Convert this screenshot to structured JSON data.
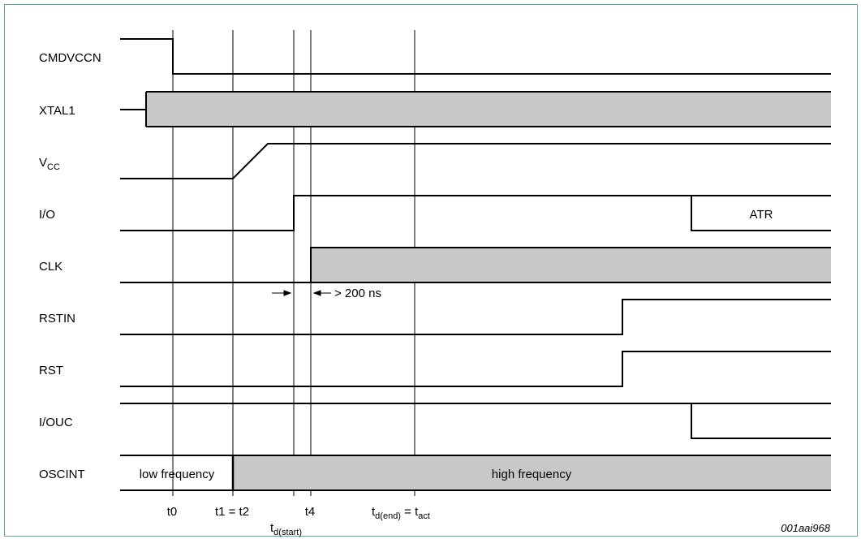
{
  "signals": [
    {
      "id": "cmdvccn",
      "label": "CMDVCCN"
    },
    {
      "id": "xtal1",
      "label": "XTAL1"
    },
    {
      "id": "vcc",
      "label": "V",
      "sub": "CC"
    },
    {
      "id": "io",
      "label": "I/O"
    },
    {
      "id": "clk",
      "label": "CLK"
    },
    {
      "id": "rstin",
      "label": "RSTIN"
    },
    {
      "id": "rst",
      "label": "RST"
    },
    {
      "id": "iouc",
      "label": "I/OUC"
    },
    {
      "id": "oscint",
      "label": "OSCINT"
    }
  ],
  "annotations": {
    "atr": "ATR",
    "delay": "> 200 ns",
    "low_freq": "low frequency",
    "high_freq": "high frequency"
  },
  "time_labels": {
    "t0": "t0",
    "t1_t2": "t1 = t2",
    "td_start_main": "t",
    "td_start_sub": "d(start)",
    "t4": "t4",
    "td_end_main": "t",
    "td_end_sub": "d(end)",
    "td_end_eq": " = t",
    "td_end_act": "act"
  },
  "figure_id": "001aai968",
  "colors": {
    "border": "#5fa3a8",
    "fill": "#c8c8c8",
    "line": "#000000"
  }
}
